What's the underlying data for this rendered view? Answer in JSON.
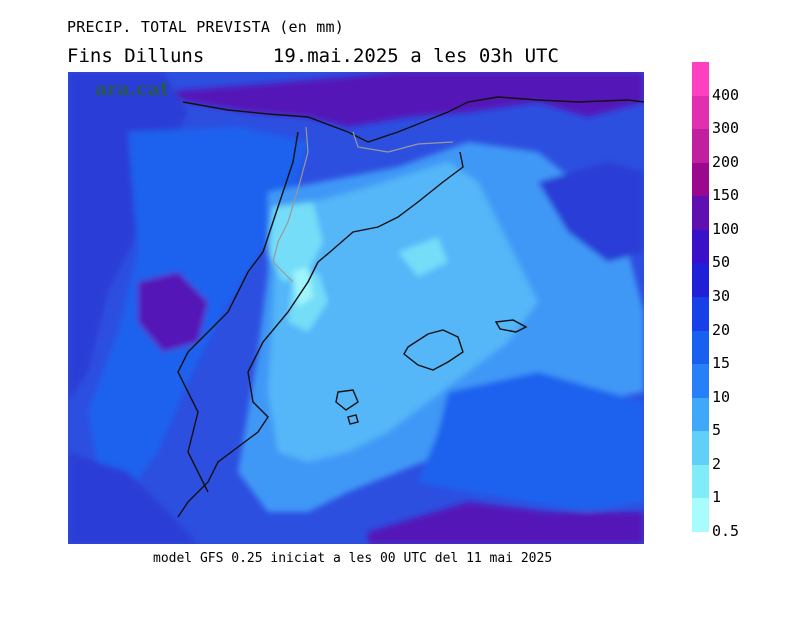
{
  "header": {
    "title": "PRECIP. TOTAL PREVISTA (en mm)",
    "subtitle_day": "Fins Dilluns",
    "subtitle_date": "19.mai.2025 a les 03h UTC"
  },
  "footer": {
    "text": "model GFS 0.25 iniciat a les 00 UTC del 11 mai 2025"
  },
  "watermark": {
    "text": "ara.cat"
  },
  "legend": {
    "items": [
      {
        "label": "400",
        "color": "#ff40c0"
      },
      {
        "label": "300",
        "color": "#e030b0"
      },
      {
        "label": "200",
        "color": "#c020a0"
      },
      {
        "label": "150",
        "color": "#9a0890"
      },
      {
        "label": "100",
        "color": "#6010b0"
      },
      {
        "label": "50",
        "color": "#3a10c8"
      },
      {
        "label": "30",
        "color": "#2020d8"
      },
      {
        "label": "20",
        "color": "#1840e8"
      },
      {
        "label": "15",
        "color": "#1860f0"
      },
      {
        "label": "10",
        "color": "#2880f8"
      },
      {
        "label": "5",
        "color": "#40a8f8"
      },
      {
        "label": "2",
        "color": "#60d0f8"
      },
      {
        "label": "1",
        "color": "#80ecf8"
      },
      {
        "label": "0.5",
        "color": "#a8fcfc"
      }
    ]
  },
  "map": {
    "background_color": "#2d4fe0",
    "palette": {
      "deep_purple": "#5512b8",
      "dark_blue": "#2a3ed6",
      "mid_blue": "#1f62ee",
      "light_blue": "#3f98f6",
      "sky_blue": "#55b6f8",
      "cyan": "#75ddf8",
      "pale_cyan": "#a0f5fa"
    },
    "coastline_color": "#111111",
    "border_color": "#999999"
  }
}
